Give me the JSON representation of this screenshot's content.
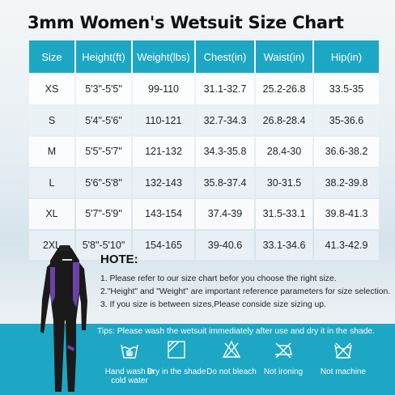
{
  "title": "3mm Women's Wetsuit Size Chart",
  "table": {
    "headers": [
      "Size",
      "Height(ft)",
      "Weight(lbs)",
      "Chest(in)",
      "Waist(in)",
      "Hip(in)"
    ],
    "rows": [
      [
        "XS",
        "5'3\"-5'5\"",
        "99-110",
        "31.1-32.7",
        "25.2-26.8",
        "33.5-35"
      ],
      [
        "S",
        "5'4\"-5'6\"",
        "110-121",
        "32.7-34.3",
        "26.8-28.4",
        "35-36.6"
      ],
      [
        "M",
        "5'5\"-5'7\"",
        "121-132",
        "34.3-35.8",
        "28.4-30",
        "36.6-38.2"
      ],
      [
        "L",
        "5'6\"-5'8\"",
        "132-143",
        "35.8-37.4",
        "30-31.5",
        "38.2-39.8"
      ],
      [
        "XL",
        "5'7\"-5'9\"",
        "143-154",
        "37.4-39",
        "31.5-33.1",
        "39.8-41.3"
      ],
      [
        "2XL",
        "5'8\"-5'10\"",
        "154-165",
        "39-40.6",
        "33.1-34.6",
        "41.3-42.9"
      ]
    ]
  },
  "notes": {
    "title": "HOTE:",
    "lines": [
      "1. Please refer to our size chart befor you choose the right size.",
      "2.\"Height\" and \"Weight\" are important reference parameters for size selection.",
      "3. If you size is between sizes,Please conside size sizing up."
    ]
  },
  "care": {
    "tips": "Tips: Please wash the wetsuit immediately after use and dry it in the shade.",
    "items": [
      {
        "icon": "hand-wash-icon",
        "label": "Hand wash in cold water"
      },
      {
        "icon": "dry-in-shade-icon",
        "label": "Dry in the shade"
      },
      {
        "icon": "no-bleach-icon",
        "label": "Do not bleach"
      },
      {
        "icon": "no-ironing-icon",
        "label": "Not ironing"
      },
      {
        "icon": "no-machine-wash-icon",
        "label": "Not machine"
      }
    ]
  },
  "colors": {
    "accent": "#1ea7c4",
    "suit_black": "#1a1a1a",
    "suit_purple": "#6b42a8"
  }
}
